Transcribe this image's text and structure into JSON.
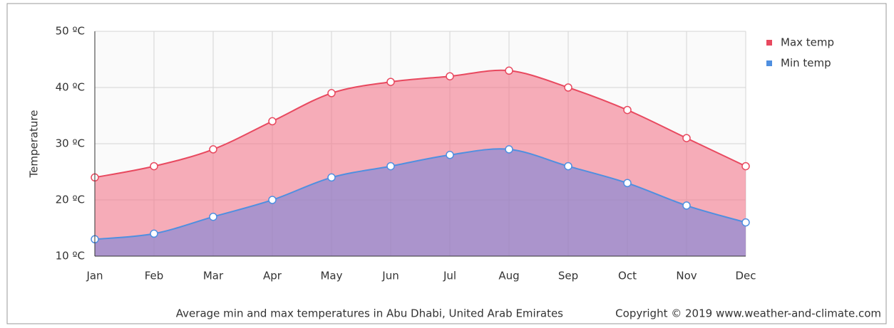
{
  "chart_data": {
    "type": "area",
    "ylabel": "Temperature",
    "caption": "Average min and max temperatures in Abu Dhabi, United Arab Emirates",
    "copyright": "Copyright © 2019 www.weather-and-climate.com",
    "categories": [
      "Jan",
      "Feb",
      "Mar",
      "Apr",
      "May",
      "Jun",
      "Jul",
      "Aug",
      "Sep",
      "Oct",
      "Nov",
      "Dec"
    ],
    "series": [
      {
        "name": "Max temp",
        "color": "#e8495f",
        "values": [
          24,
          26,
          29,
          34,
          39,
          41,
          42,
          43,
          40,
          36,
          31,
          26
        ]
      },
      {
        "name": "Min temp",
        "color": "#4f8fe0",
        "values": [
          13,
          14,
          17,
          20,
          24,
          26,
          28,
          29,
          26,
          23,
          19,
          16
        ]
      }
    ],
    "ylim": [
      10,
      50
    ],
    "yticks": [
      {
        "value": 10,
        "label": "10 ºC"
      },
      {
        "value": 20,
        "label": "20 ºC"
      },
      {
        "value": 30,
        "label": "30 ºC"
      },
      {
        "value": 40,
        "label": "40 ºC"
      },
      {
        "value": 50,
        "label": "50 ºC"
      }
    ],
    "grid": true,
    "legend": "top-right"
  }
}
